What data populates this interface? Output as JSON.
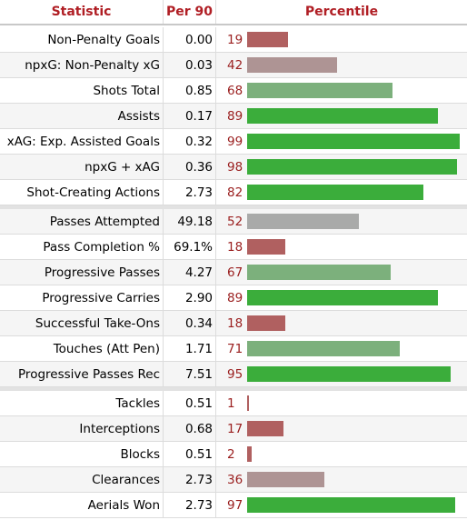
{
  "header": {
    "statistic": "Statistic",
    "per90": "Per 90",
    "percentile": "Percentile"
  },
  "colors": {
    "poor": "#b06060",
    "belowAvg": "#ae9494",
    "avg": "#a9aaa9",
    "aboveAvg": "#7cb07c",
    "elite": "#3bad3b"
  },
  "chart_data": {
    "type": "bar",
    "orientation": "horizontal",
    "xlim": [
      0,
      100
    ],
    "groups": [
      {
        "rows": [
          {
            "statistic": "Non-Penalty Goals",
            "per90": "0.00",
            "percentile": 19
          },
          {
            "statistic": "npxG: Non-Penalty xG",
            "per90": "0.03",
            "percentile": 42
          },
          {
            "statistic": "Shots Total",
            "per90": "0.85",
            "percentile": 68
          },
          {
            "statistic": "Assists",
            "per90": "0.17",
            "percentile": 89
          },
          {
            "statistic": "xAG: Exp. Assisted Goals",
            "per90": "0.32",
            "percentile": 99
          },
          {
            "statistic": "npxG + xAG",
            "per90": "0.36",
            "percentile": 98
          },
          {
            "statistic": "Shot-Creating Actions",
            "per90": "2.73",
            "percentile": 82
          }
        ]
      },
      {
        "rows": [
          {
            "statistic": "Passes Attempted",
            "per90": "49.18",
            "percentile": 52
          },
          {
            "statistic": "Pass Completion %",
            "per90": "69.1%",
            "percentile": 18
          },
          {
            "statistic": "Progressive Passes",
            "per90": "4.27",
            "percentile": 67
          },
          {
            "statistic": "Progressive Carries",
            "per90": "2.90",
            "percentile": 89
          },
          {
            "statistic": "Successful Take-Ons",
            "per90": "0.34",
            "percentile": 18
          },
          {
            "statistic": "Touches (Att Pen)",
            "per90": "1.71",
            "percentile": 71
          },
          {
            "statistic": "Progressive Passes Rec",
            "per90": "7.51",
            "percentile": 95
          }
        ]
      },
      {
        "rows": [
          {
            "statistic": "Tackles",
            "per90": "0.51",
            "percentile": 1
          },
          {
            "statistic": "Interceptions",
            "per90": "0.68",
            "percentile": 17
          },
          {
            "statistic": "Blocks",
            "per90": "0.51",
            "percentile": 2
          },
          {
            "statistic": "Clearances",
            "per90": "2.73",
            "percentile": 36
          },
          {
            "statistic": "Aerials Won",
            "per90": "2.73",
            "percentile": 97
          }
        ]
      }
    ]
  }
}
